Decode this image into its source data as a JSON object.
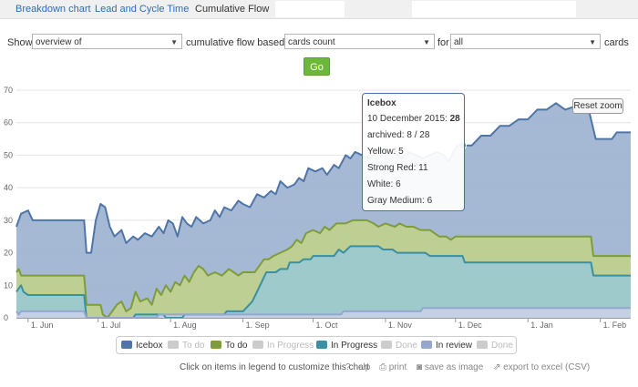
{
  "tabs": [
    "Breakdown chart",
    "Lead and Cycle Time",
    "Cumulative Flow"
  ],
  "controls": {
    "show_label": "Show",
    "view_value": "overview of",
    "based_on_label": "cumulative flow based on",
    "metric_value": "cards count",
    "for_label": "for",
    "scope_value": "all",
    "cards_label": "cards",
    "go_label": "Go"
  },
  "chart_data": {
    "type": "area",
    "title": "",
    "xlabel": "",
    "ylabel": "",
    "ylim": [
      0,
      70
    ],
    "yticks": [
      "0",
      "10",
      "20",
      "30",
      "40",
      "50",
      "60",
      "70"
    ],
    "xticks": [
      "1. Jun",
      "1. Jul",
      "1. Aug",
      "1. Sep",
      "1. Oct",
      "1. Nov",
      "1. Dec",
      "1. Jan",
      "1. Feb"
    ],
    "x_days": [
      0,
      30,
      61,
      92,
      122,
      153,
      183,
      214,
      245
    ],
    "series": [
      {
        "name": "Icebox",
        "color": "#4f75a8",
        "fill": "#9bb1cf",
        "points": [
          [
            -5,
            28
          ],
          [
            -3,
            32
          ],
          [
            0,
            33
          ],
          [
            2,
            30
          ],
          [
            10,
            30
          ],
          [
            24,
            30
          ],
          [
            25,
            20
          ],
          [
            27,
            20
          ],
          [
            29,
            30
          ],
          [
            31,
            35
          ],
          [
            33,
            34
          ],
          [
            35,
            28
          ],
          [
            37,
            25
          ],
          [
            40,
            27
          ],
          [
            42,
            23
          ],
          [
            45,
            25
          ],
          [
            47,
            24
          ],
          [
            50,
            26
          ],
          [
            53,
            25
          ],
          [
            56,
            28
          ],
          [
            58,
            26
          ],
          [
            60,
            30
          ],
          [
            62,
            29
          ],
          [
            64,
            25
          ],
          [
            66,
            31
          ],
          [
            68,
            29
          ],
          [
            70,
            28
          ],
          [
            72,
            31
          ],
          [
            75,
            29
          ],
          [
            78,
            30
          ],
          [
            80,
            33
          ],
          [
            82,
            31
          ],
          [
            84,
            34
          ],
          [
            87,
            33
          ],
          [
            90,
            36
          ],
          [
            92,
            35
          ],
          [
            95,
            34
          ],
          [
            98,
            38
          ],
          [
            101,
            37
          ],
          [
            104,
            39
          ],
          [
            106,
            38
          ],
          [
            108,
            42
          ],
          [
            111,
            40
          ],
          [
            114,
            41
          ],
          [
            116,
            43
          ],
          [
            118,
            42
          ],
          [
            120,
            46
          ],
          [
            123,
            45
          ],
          [
            126,
            46
          ],
          [
            128,
            44
          ],
          [
            131,
            47
          ],
          [
            133,
            46
          ],
          [
            136,
            50
          ],
          [
            138,
            49
          ],
          [
            140,
            51
          ],
          [
            143,
            50
          ],
          [
            146,
            49
          ],
          [
            148,
            50
          ],
          [
            151,
            52
          ],
          [
            154,
            50
          ],
          [
            157,
            51
          ],
          [
            160,
            49
          ],
          [
            163,
            51
          ],
          [
            166,
            50
          ],
          [
            169,
            49
          ],
          [
            172,
            50
          ],
          [
            175,
            51
          ],
          [
            178,
            50
          ],
          [
            180,
            48
          ],
          [
            182,
            51
          ],
          [
            184,
            53
          ],
          [
            186,
            53
          ],
          [
            190,
            53
          ],
          [
            194,
            56
          ],
          [
            198,
            56
          ],
          [
            202,
            59
          ],
          [
            206,
            59
          ],
          [
            210,
            61
          ],
          [
            214,
            61
          ],
          [
            218,
            64
          ],
          [
            222,
            64
          ],
          [
            226,
            66
          ],
          [
            230,
            64
          ],
          [
            234,
            65
          ],
          [
            240,
            64
          ],
          [
            243,
            55
          ],
          [
            250,
            55
          ],
          [
            252,
            57
          ],
          [
            258,
            57
          ]
        ]
      },
      {
        "name": "To do",
        "color": "#7f9c3a",
        "fill": "#c0d28c",
        "points": [
          [
            -5,
            14
          ],
          [
            -4,
            15
          ],
          [
            -3,
            13
          ],
          [
            0,
            13
          ],
          [
            10,
            13
          ],
          [
            24,
            13
          ],
          [
            25,
            4
          ],
          [
            27,
            4
          ],
          [
            31,
            4
          ],
          [
            32,
            1
          ],
          [
            34,
            0
          ],
          [
            36,
            2
          ],
          [
            38,
            4
          ],
          [
            40,
            5
          ],
          [
            42,
            2
          ],
          [
            44,
            3
          ],
          [
            46,
            8
          ],
          [
            48,
            5
          ],
          [
            51,
            6
          ],
          [
            53,
            4
          ],
          [
            55,
            9
          ],
          [
            57,
            7
          ],
          [
            59,
            10
          ],
          [
            61,
            8
          ],
          [
            63,
            11
          ],
          [
            65,
            10
          ],
          [
            67,
            13
          ],
          [
            69,
            11
          ],
          [
            71,
            14
          ],
          [
            73,
            16
          ],
          [
            75,
            15
          ],
          [
            77,
            13
          ],
          [
            80,
            14
          ],
          [
            83,
            13
          ],
          [
            86,
            15
          ],
          [
            90,
            13
          ],
          [
            92,
            14
          ],
          [
            97,
            14
          ],
          [
            99,
            16
          ],
          [
            101,
            18
          ],
          [
            103,
            18
          ],
          [
            105,
            19
          ],
          [
            108,
            20
          ],
          [
            111,
            21
          ],
          [
            113,
            22
          ],
          [
            115,
            24
          ],
          [
            117,
            23
          ],
          [
            119,
            26
          ],
          [
            122,
            27
          ],
          [
            125,
            26
          ],
          [
            127,
            28
          ],
          [
            129,
            27
          ],
          [
            132,
            29
          ],
          [
            136,
            29
          ],
          [
            139,
            30
          ],
          [
            145,
            30
          ],
          [
            148,
            29
          ],
          [
            150,
            28
          ],
          [
            153,
            29
          ],
          [
            157,
            28
          ],
          [
            159,
            29
          ],
          [
            162,
            28
          ],
          [
            165,
            28
          ],
          [
            168,
            27
          ],
          [
            172,
            27
          ],
          [
            176,
            25
          ],
          [
            179,
            25
          ],
          [
            181,
            24
          ],
          [
            183,
            25
          ],
          [
            186,
            25
          ],
          [
            241,
            25
          ],
          [
            242,
            19
          ],
          [
            258,
            19
          ]
        ]
      },
      {
        "name": "In Progress",
        "color": "#3a8fa3",
        "fill": "#9bc9d3",
        "points": [
          [
            -5,
            8
          ],
          [
            -3,
            10
          ],
          [
            -2,
            8
          ],
          [
            0,
            7
          ],
          [
            10,
            7
          ],
          [
            24,
            7
          ],
          [
            25,
            0
          ],
          [
            45,
            0
          ],
          [
            46,
            1
          ],
          [
            58,
            1
          ],
          [
            59,
            0
          ],
          [
            66,
            0
          ],
          [
            67,
            1
          ],
          [
            84,
            1
          ],
          [
            85,
            2
          ],
          [
            92,
            2
          ],
          [
            96,
            5
          ],
          [
            98,
            8
          ],
          [
            100,
            11
          ],
          [
            102,
            14
          ],
          [
            106,
            14
          ],
          [
            108,
            15
          ],
          [
            111,
            15
          ],
          [
            112,
            17
          ],
          [
            116,
            17
          ],
          [
            118,
            18
          ],
          [
            121,
            18
          ],
          [
            122,
            19
          ],
          [
            131,
            19
          ],
          [
            133,
            21
          ],
          [
            135,
            20
          ],
          [
            138,
            22
          ],
          [
            150,
            22
          ],
          [
            152,
            21
          ],
          [
            156,
            21
          ],
          [
            158,
            20
          ],
          [
            170,
            20
          ],
          [
            172,
            19
          ],
          [
            186,
            19
          ],
          [
            187,
            17
          ],
          [
            241,
            17
          ],
          [
            242,
            13
          ],
          [
            258,
            13
          ]
        ]
      },
      {
        "name": "In review",
        "color": "#93a7cf",
        "fill": "#c8d2e7",
        "points": [
          [
            -5,
            2
          ],
          [
            -4,
            1
          ],
          [
            -3,
            2
          ],
          [
            0,
            2
          ],
          [
            24,
            2
          ],
          [
            25,
            0
          ],
          [
            55,
            0
          ],
          [
            56,
            1
          ],
          [
            134,
            1
          ],
          [
            135,
            2
          ],
          [
            168,
            2
          ],
          [
            169,
            3
          ],
          [
            258,
            3
          ]
        ]
      }
    ]
  },
  "tooltip": {
    "title": "Icebox",
    "date_label": "10 December 2015:",
    "date_value": "28",
    "archived": "archived: 8 / 28",
    "lines": [
      "Yellow: 5",
      "Strong Red: 11",
      "White: 6",
      "Gray Medium: 6"
    ]
  },
  "reset_zoom_label": "Reset zoom",
  "legend": [
    {
      "label": "Icebox",
      "color": "#4f75a8",
      "active": true
    },
    {
      "label": "To do",
      "color": "#cccccc",
      "active": false
    },
    {
      "label": "To do",
      "color": "#7f9c3a",
      "active": true
    },
    {
      "label": "In Progress",
      "color": "#cccccc",
      "active": false
    },
    {
      "label": "In Progress",
      "color": "#3a8fa3",
      "active": true
    },
    {
      "label": "Done",
      "color": "#cccccc",
      "active": false
    },
    {
      "label": "In review",
      "color": "#93a7cf",
      "active": true
    },
    {
      "label": "Done",
      "color": "#cccccc",
      "active": false
    }
  ],
  "footer": {
    "hint": "Click on items in legend to customize this chart",
    "help": "help",
    "print": "print",
    "save_image": "save as image",
    "export_csv": "export to excel (CSV)"
  }
}
